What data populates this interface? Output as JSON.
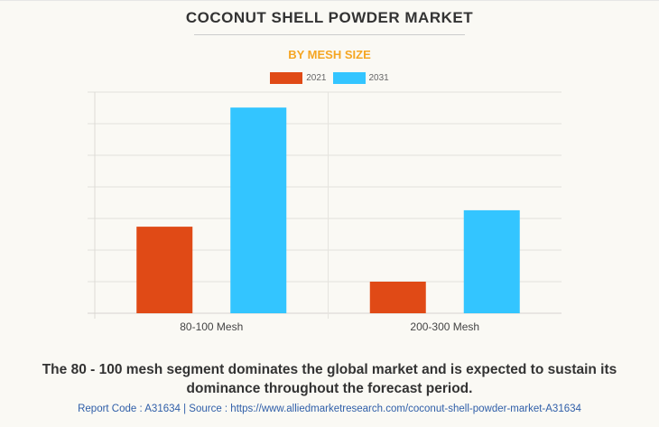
{
  "header": {
    "title": "COCONUT SHELL POWDER MARKET",
    "subtitle": "BY MESH SIZE"
  },
  "colors": {
    "series_2021": "#e04a16",
    "series_2031": "#33c5ff",
    "subtitle": "#f5a623",
    "source_link": "#2f5ea8"
  },
  "chart_data": {
    "type": "bar",
    "title": "COCONUT SHELL POWDER MARKET",
    "subtitle": "BY MESH SIZE",
    "categories": [
      "80-100 Mesh",
      "200-300 Mesh"
    ],
    "series": [
      {
        "name": "2021",
        "values": [
          2.74,
          1.0
        ]
      },
      {
        "name": "2031",
        "values": [
          6.51,
          3.26
        ]
      }
    ],
    "xlabel": "",
    "ylabel": "",
    "ylim": [
      0,
      7
    ],
    "y_units": "relative (unlabeled axis)",
    "grid": true,
    "legend": "top-center"
  },
  "footer": {
    "caption": "The 80 - 100 mesh segment dominates the global market and is expected to sustain its dominance throughout the forecast period.",
    "source": "Report Code : A31634  |  Source : https://www.alliedmarketresearch.com/coconut-shell-powder-market-A31634"
  }
}
